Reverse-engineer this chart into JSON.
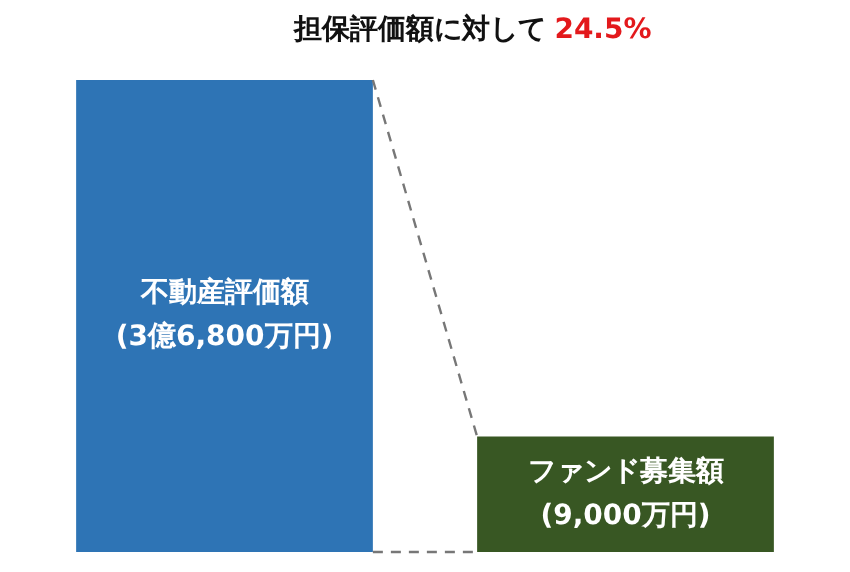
{
  "chart_data": {
    "type": "bar",
    "title": "担保評価額に対して",
    "annotations": [
      "24.5%"
    ],
    "categories": [
      "不動産評価額",
      "ファンド募集額"
    ],
    "values": [
      36800,
      9000
    ],
    "colors": [
      "#2e74b5",
      "#385723"
    ],
    "value_labels": [
      "(3億6,800万円)",
      "(9,000万円)"
    ],
    "legend": false
  }
}
